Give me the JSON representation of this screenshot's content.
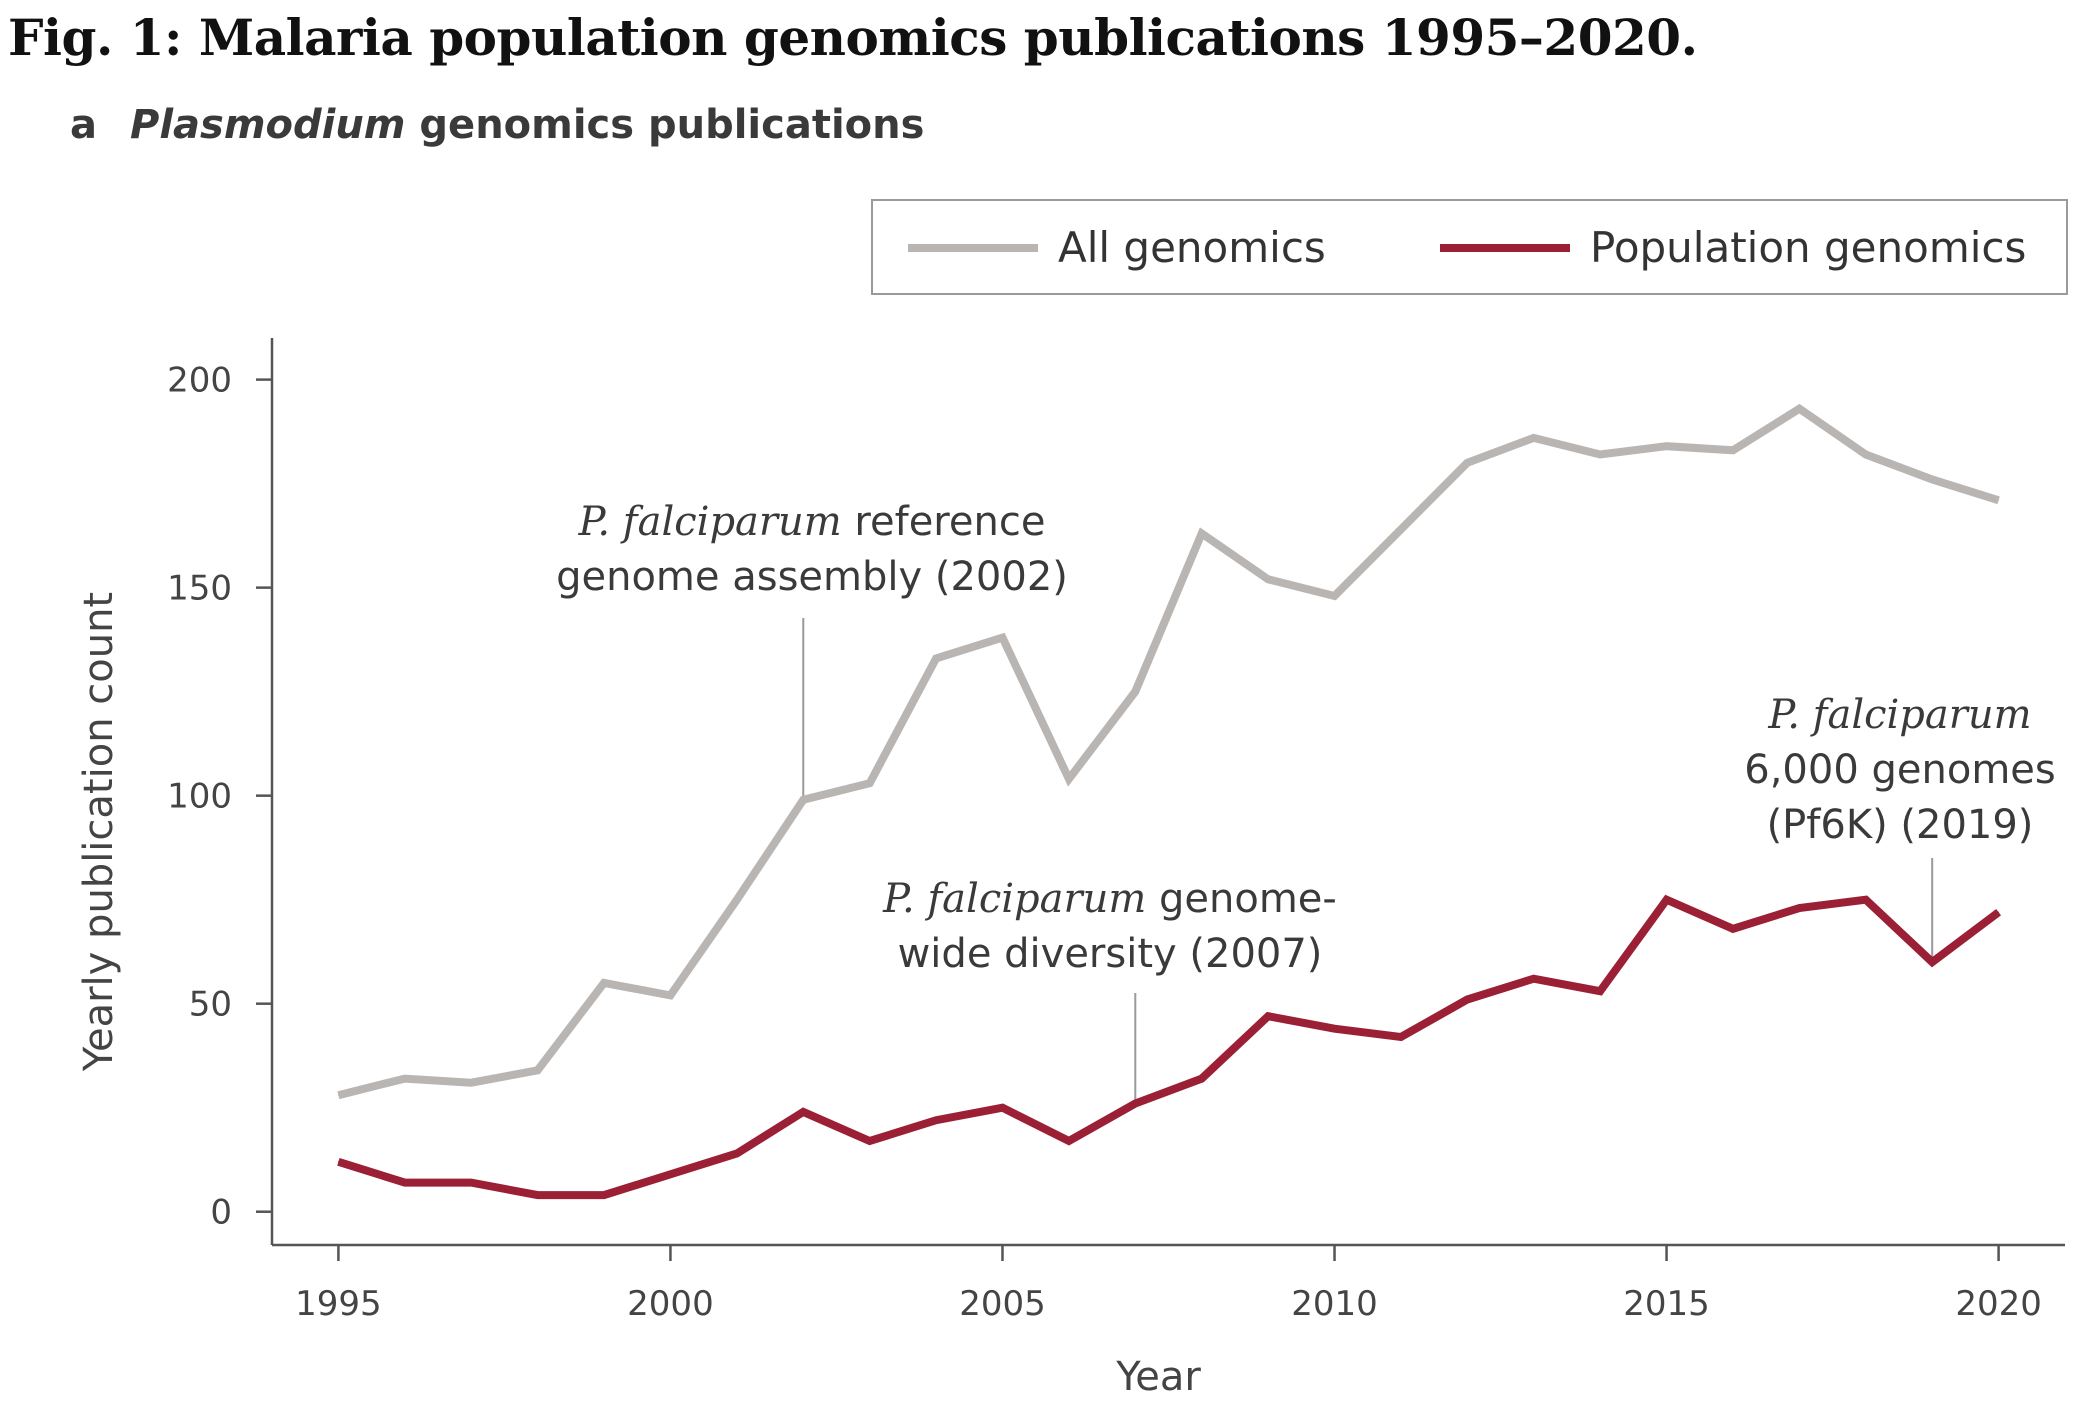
{
  "figure_title": "Fig. 1: Malaria population genomics publications 1995–2020.",
  "panel": {
    "letter": "a",
    "title_italic": "Plasmodium",
    "title_rest": " genomics publications"
  },
  "colors": {
    "all_genomics": "#b9b5b3",
    "population_genomics": "#9b1f35",
    "axis": "#555555"
  },
  "chart_data": {
    "type": "line",
    "x": [
      1995,
      1996,
      1997,
      1998,
      1999,
      2000,
      2001,
      2002,
      2003,
      2004,
      2005,
      2006,
      2007,
      2008,
      2009,
      2010,
      2011,
      2012,
      2013,
      2014,
      2015,
      2016,
      2017,
      2018,
      2019,
      2020
    ],
    "series": [
      {
        "name": "All genomics",
        "values": [
          28,
          32,
          31,
          34,
          55,
          52,
          75,
          99,
          103,
          133,
          138,
          104,
          125,
          163,
          152,
          148,
          164,
          180,
          186,
          182,
          184,
          183,
          193,
          182,
          176,
          171
        ]
      },
      {
        "name": "Population genomics",
        "values": [
          12,
          7,
          7,
          4,
          4,
          9,
          14,
          24,
          17,
          22,
          25,
          17,
          26,
          32,
          47,
          44,
          42,
          51,
          56,
          53,
          75,
          68,
          73,
          75,
          60,
          72
        ]
      }
    ],
    "xlabel": "Year",
    "ylabel": "Yearly publication count",
    "xlim": [
      1994,
      2021
    ],
    "ylim": [
      -8,
      210
    ],
    "x_ticks": [
      "1995",
      "2000",
      "2005",
      "2010",
      "2015",
      "2020"
    ],
    "y_ticks": [
      "0",
      "50",
      "100",
      "150",
      "200"
    ],
    "legend_position": "top-right",
    "grid": false,
    "annotations": [
      {
        "year": 2002,
        "value": 99,
        "series": "All genomics",
        "italic": "P. falciparum",
        "line1_rest": " reference",
        "line2": "genome assembly (2002)",
        "line3": ""
      },
      {
        "year": 2007,
        "value": 26,
        "series": "Population genomics",
        "italic": "P. falciparum",
        "line1_rest": " genome-",
        "line2": "wide diversity (2007)",
        "line3": ""
      },
      {
        "year": 2019,
        "value": 60,
        "series": "Population genomics",
        "italic": "P. falciparum",
        "line1_rest": "",
        "line2": "6,000 genomes",
        "line3": "(Pf6K) (2019)"
      }
    ]
  }
}
